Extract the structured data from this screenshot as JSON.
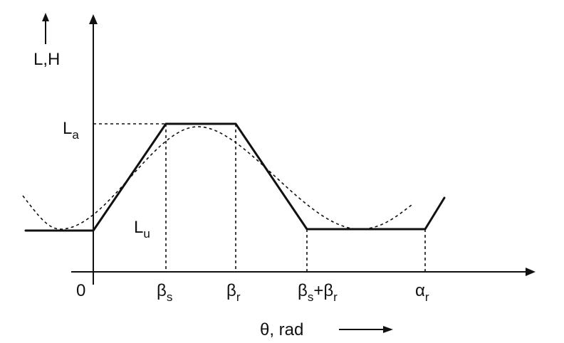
{
  "y_axis_label": "L,H",
  "level_labels": {
    "upper": {
      "base": "L",
      "sub": "a"
    },
    "lower": {
      "base": "L",
      "sub": "u"
    }
  },
  "x_ticks": [
    {
      "base": "0",
      "sub": ""
    },
    {
      "base": "β",
      "sub": "s"
    },
    {
      "base": "β",
      "sub": "r"
    },
    {
      "part1": "β",
      "sub1": "s",
      "plus": "+",
      "part2": "β",
      "sub2": "r"
    },
    {
      "base": "α",
      "sub": "r"
    }
  ],
  "x_axis_label": "θ, rad",
  "colors": {
    "line": "#111111",
    "background": "#ffffff"
  }
}
